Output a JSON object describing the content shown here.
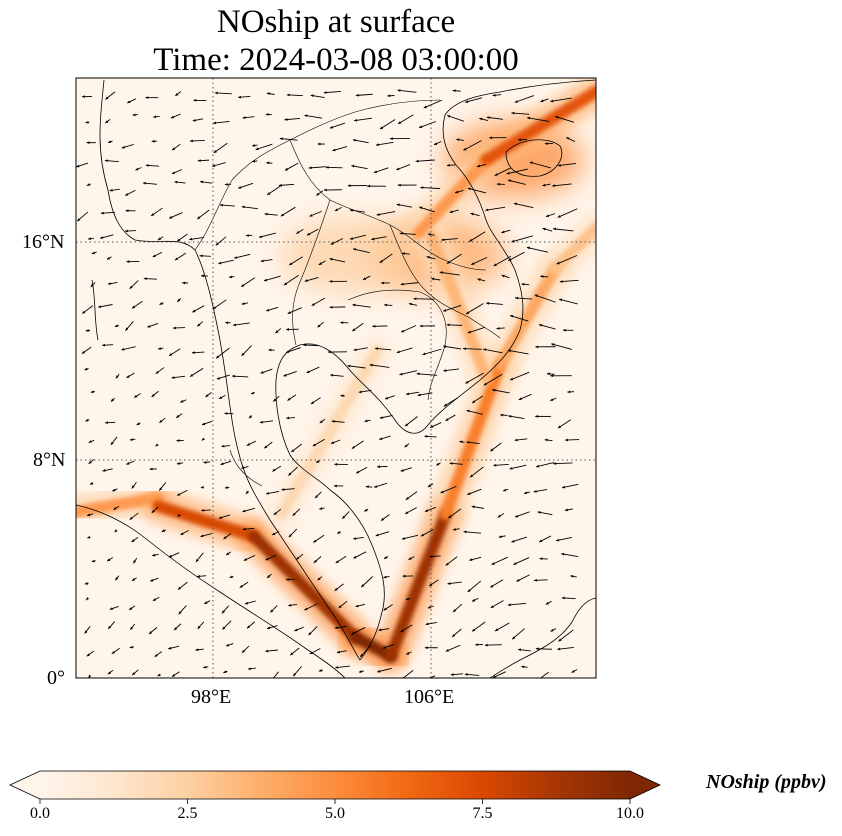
{
  "title": {
    "line1": "NOship at surface",
    "line2": "Time: 2024-03-08 03:00:00"
  },
  "axes": {
    "lat_ticks": [
      "16°N",
      "8°N",
      "0°"
    ],
    "lon_ticks": [
      "98°E",
      "106°E"
    ]
  },
  "colorbar": {
    "label": "NOship (ppbv)",
    "ticks": [
      "0.0",
      "2.5",
      "5.0",
      "7.5",
      "10.0"
    ],
    "min": 0,
    "max": 10,
    "extend": "both",
    "colormap": [
      "#fff5eb",
      "#fee6ce",
      "#fdd0a2",
      "#fdae6b",
      "#fd8d3c",
      "#f16913",
      "#d94801",
      "#a63603",
      "#7f2704"
    ]
  },
  "chart_data": {
    "type": "heatmap",
    "title": "NOship at surface\nTime: 2024-03-08 03:00:00",
    "xlabel": "",
    "ylabel": "",
    "lon_range": [
      93,
      112
    ],
    "lat_range": [
      0,
      22
    ],
    "lon_ticks": [
      98,
      106
    ],
    "lat_ticks": [
      0,
      8,
      16
    ],
    "gridlines": "dotted",
    "value_range": [
      0,
      10
    ],
    "units": "ppbv",
    "shipping_lanes": [
      {
        "from": [
          93.0,
          6.1
        ],
        "to": [
          96.0,
          6.6
        ],
        "value": 4.5
      },
      {
        "from": [
          96.0,
          6.3
        ],
        "to": [
          99.5,
          5.2
        ],
        "value": 7.5
      },
      {
        "from": [
          99.5,
          5.2
        ],
        "to": [
          103.2,
          1.5
        ],
        "value": 9.0
      },
      {
        "from": [
          103.2,
          1.5
        ],
        "to": [
          104.5,
          0.8
        ],
        "value": 10.0
      },
      {
        "from": [
          104.5,
          0.8
        ],
        "to": [
          106.5,
          6.0
        ],
        "value": 9.0
      },
      {
        "from": [
          106.5,
          6.0
        ],
        "to": [
          108.5,
          11.5
        ],
        "value": 5.5
      },
      {
        "from": [
          108.5,
          11.5
        ],
        "to": [
          110.5,
          15.0
        ],
        "value": 4.0
      },
      {
        "from": [
          110.5,
          15.0
        ],
        "to": [
          112.0,
          16.5
        ],
        "value": 3.0
      },
      {
        "from": [
          105.5,
          16.3
        ],
        "to": [
          108.0,
          19.0
        ],
        "value": 4.5
      },
      {
        "from": [
          108.0,
          19.0
        ],
        "to": [
          112.0,
          21.5
        ],
        "value": 7.0
      },
      {
        "from": [
          106.0,
          16.2
        ],
        "to": [
          108.0,
          11.0
        ],
        "value": 3.5
      },
      {
        "from": [
          100.5,
          6.0
        ],
        "to": [
          104.0,
          12.0
        ],
        "value": 2.0
      }
    ],
    "plumes": [
      {
        "center": [
          109.0,
          19.0
        ],
        "value": 5.0
      },
      {
        "center": [
          106.2,
          15.5
        ],
        "value": 4.0
      },
      {
        "center": [
          103.0,
          15.5
        ],
        "value": 2.5
      }
    ],
    "wind_field": "arrows, generally from the east/northeast over land and sea"
  }
}
